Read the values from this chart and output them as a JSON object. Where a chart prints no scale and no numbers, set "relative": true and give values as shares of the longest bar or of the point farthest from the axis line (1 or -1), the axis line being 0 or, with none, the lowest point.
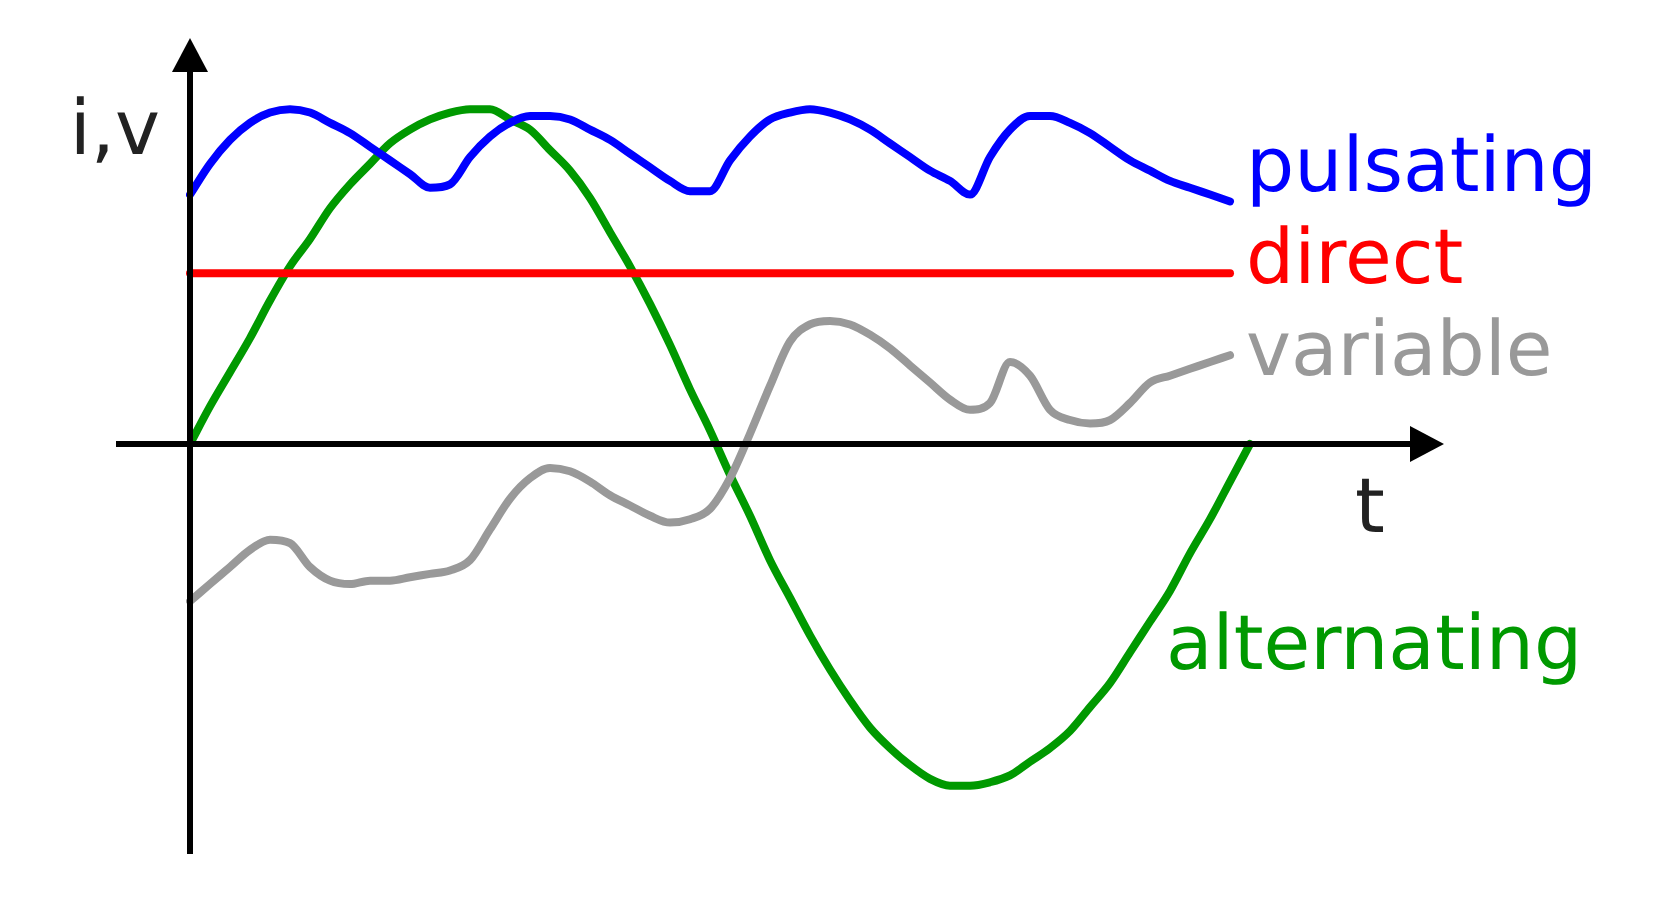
{
  "chart_data": {
    "type": "line",
    "relative": true,
    "xlabel": "t",
    "ylabel": "i,v",
    "legend": false,
    "grid": false,
    "marker": "none",
    "line_style": "solid",
    "categories": [
      null,
      null,
      null,
      null,
      null,
      null,
      null,
      null,
      null,
      null,
      null,
      null,
      null,
      null,
      null,
      null,
      null,
      null,
      null,
      null,
      null,
      null,
      null,
      null,
      null,
      null,
      null,
      null,
      null,
      null,
      null,
      null,
      null,
      null,
      null,
      null,
      null,
      null,
      null,
      null,
      null,
      null,
      null,
      null,
      null,
      null,
      null,
      null,
      null,
      null,
      null,
      null,
      null,
      null
    ],
    "series": [
      {
        "name": "pulsating",
        "color": "#0000ff",
        "values": [
          0.73,
          0.82,
          0.89,
          0.94,
          0.97,
          0.98,
          0.97,
          0.94,
          0.91,
          0.87,
          0.83,
          0.79,
          0.75,
          0.76,
          0.84,
          0.9,
          0.94,
          0.96,
          0.96,
          0.95,
          0.92,
          0.89,
          0.85,
          0.81,
          0.77,
          0.74,
          0.74,
          0.83,
          0.9,
          0.95,
          0.97,
          0.98,
          0.97,
          0.95,
          0.92,
          0.88,
          0.84,
          0.8,
          0.77,
          0.73,
          0.84,
          0.92,
          0.96,
          0.96,
          0.94,
          0.91,
          0.87,
          0.83,
          0.8,
          0.77,
          0.75,
          0.73,
          0.71,
          null
        ]
      },
      {
        "name": "direct",
        "color": "#ff0000",
        "values": [
          0.5,
          0.5,
          0.5,
          0.5,
          0.5,
          0.5,
          0.5,
          0.5,
          0.5,
          0.5,
          0.5,
          0.5,
          0.5,
          0.5,
          0.5,
          0.5,
          0.5,
          0.5,
          0.5,
          0.5,
          0.5,
          0.5,
          0.5,
          0.5,
          0.5,
          0.5,
          0.5,
          0.5,
          0.5,
          0.5,
          0.5,
          0.5,
          0.5,
          0.5,
          0.5,
          0.5,
          0.5,
          0.5,
          0.5,
          0.5,
          0.5,
          0.5,
          0.5,
          0.5,
          0.5,
          0.5,
          0.5,
          0.5,
          0.5,
          0.5,
          0.5,
          0.5,
          0.5,
          null
        ]
      },
      {
        "name": "variable",
        "color": "#999999",
        "values": [
          -0.46,
          -0.41,
          -0.36,
          -0.31,
          -0.28,
          -0.29,
          -0.36,
          -0.4,
          -0.41,
          -0.4,
          -0.4,
          -0.39,
          -0.38,
          -0.37,
          -0.34,
          -0.25,
          -0.16,
          -0.1,
          -0.07,
          -0.08,
          -0.11,
          -0.15,
          -0.18,
          -0.21,
          -0.23,
          -0.22,
          -0.19,
          -0.1,
          0.03,
          0.17,
          0.3,
          0.35,
          0.36,
          0.35,
          0.32,
          0.28,
          0.23,
          0.18,
          0.13,
          0.1,
          0.12,
          0.24,
          0.2,
          0.1,
          0.07,
          0.06,
          0.07,
          0.12,
          0.18,
          0.2,
          0.22,
          0.24,
          0.26,
          null
        ]
      },
      {
        "name": "alternating",
        "color": "#009900",
        "values": [
          0,
          0.11,
          0.21,
          0.31,
          0.42,
          0.52,
          0.6,
          0.69,
          0.76,
          0.82,
          0.88,
          0.92,
          0.95,
          0.97,
          0.98,
          0.98,
          0.95,
          0.92,
          0.86,
          0.8,
          0.72,
          0.62,
          0.52,
          0.41,
          0.29,
          0.16,
          0.04,
          -0.09,
          -0.21,
          -0.34,
          -0.45,
          -0.56,
          -0.66,
          -0.75,
          -0.83,
          -0.89,
          -0.94,
          -0.98,
          -1.0,
          -1.0,
          -0.99,
          -0.97,
          -0.93,
          -0.89,
          -0.84,
          -0.77,
          -0.7,
          -0.61,
          -0.52,
          -0.43,
          -0.32,
          -0.22,
          -0.11,
          0
        ]
      }
    ]
  }
}
